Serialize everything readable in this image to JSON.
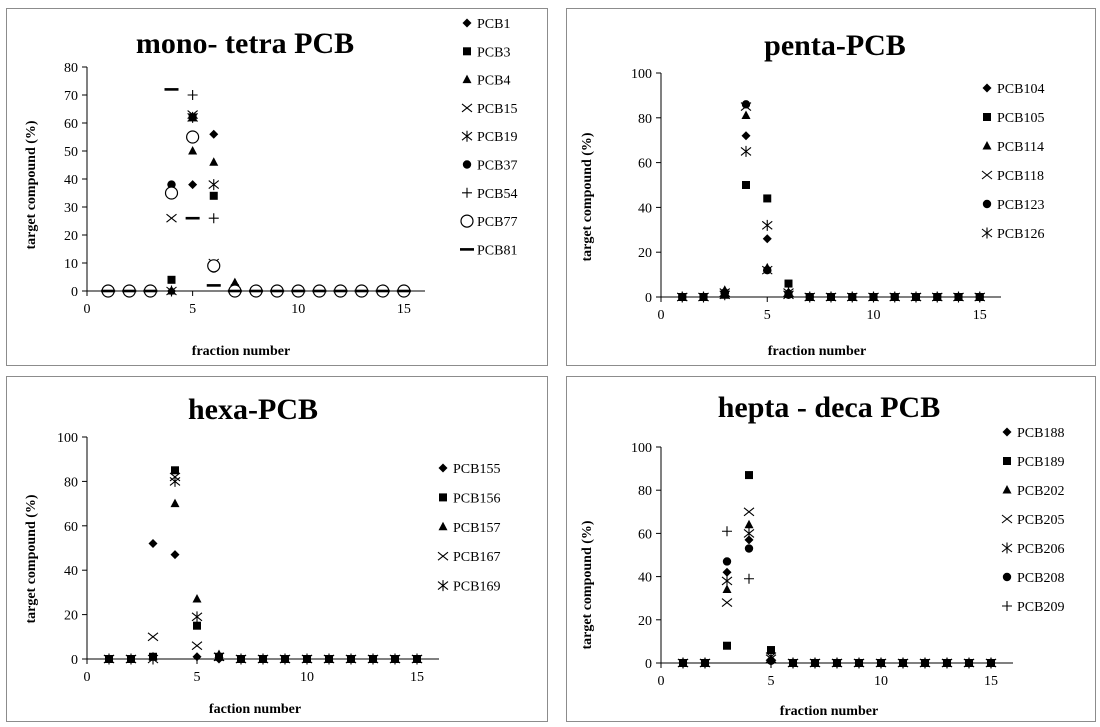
{
  "chart_data": [
    {
      "type": "scatter",
      "title": "mono- tetra PCB",
      "xlabel": "fraction number",
      "ylabel": "target compound (%)",
      "xlim": [
        0,
        16
      ],
      "ylim": [
        0,
        80
      ],
      "xticks": [
        0,
        5,
        10,
        15
      ],
      "yticks": [
        0,
        10,
        20,
        30,
        40,
        50,
        60,
        70,
        80
      ],
      "legend": "right",
      "series": [
        {
          "name": "PCB1",
          "marker": "diamond",
          "x": [
            1,
            2,
            3,
            4,
            5,
            6,
            7,
            8,
            9,
            10,
            11,
            12,
            13,
            14,
            15
          ],
          "y": [
            0,
            0,
            0,
            0,
            38,
            56,
            2,
            0,
            0,
            0,
            0,
            0,
            0,
            0,
            0
          ]
        },
        {
          "name": "PCB3",
          "marker": "square",
          "x": [
            1,
            2,
            3,
            4,
            5,
            6,
            7,
            8,
            9,
            10,
            11,
            12,
            13,
            14,
            15
          ],
          "y": [
            0,
            0,
            0,
            4,
            62,
            34,
            1,
            0,
            0,
            0,
            0,
            0,
            0,
            0,
            0
          ]
        },
        {
          "name": "PCB4",
          "marker": "triangle",
          "x": [
            1,
            2,
            3,
            4,
            5,
            6,
            7,
            8,
            9,
            10,
            11,
            12,
            13,
            14,
            15
          ],
          "y": [
            0,
            0,
            0,
            0,
            50,
            46,
            3,
            0,
            0,
            0,
            0,
            0,
            0,
            0,
            0
          ]
        },
        {
          "name": "PCB15",
          "marker": "x",
          "x": [
            1,
            2,
            3,
            4,
            5,
            6,
            7,
            8,
            9,
            10,
            11,
            12,
            13,
            14,
            15
          ],
          "y": [
            0,
            0,
            0,
            26,
            63,
            10,
            0,
            0,
            0,
            0,
            0,
            0,
            0,
            0,
            0
          ]
        },
        {
          "name": "PCB19",
          "marker": "star",
          "x": [
            1,
            2,
            3,
            4,
            5,
            6,
            7,
            8,
            9,
            10,
            11,
            12,
            13,
            14,
            15
          ],
          "y": [
            0,
            0,
            0,
            0,
            62,
            38,
            0,
            0,
            0,
            0,
            0,
            0,
            0,
            0,
            0
          ]
        },
        {
          "name": "PCB37",
          "marker": "circle",
          "x": [
            1,
            2,
            3,
            4,
            5,
            6,
            7,
            8,
            9,
            10,
            11,
            12,
            13,
            14,
            15
          ],
          "y": [
            0,
            0,
            0,
            38,
            55,
            8,
            0,
            0,
            0,
            0,
            0,
            0,
            0,
            0,
            0
          ]
        },
        {
          "name": "PCB54",
          "marker": "plus",
          "x": [
            1,
            2,
            3,
            4,
            5,
            6,
            7,
            8,
            9,
            10,
            11,
            12,
            13,
            14,
            15
          ],
          "y": [
            0,
            0,
            0,
            0,
            70,
            26,
            0,
            0,
            0,
            0,
            0,
            0,
            0,
            0,
            0
          ]
        },
        {
          "name": "PCB77",
          "marker": "ocircle",
          "x": [
            1,
            2,
            3,
            4,
            5,
            6,
            7,
            8,
            9,
            10,
            11,
            12,
            13,
            14,
            15
          ],
          "y": [
            0,
            0,
            0,
            35,
            55,
            9,
            0,
            0,
            0,
            0,
            0,
            0,
            0,
            0,
            0
          ]
        },
        {
          "name": "PCB81",
          "marker": "dash",
          "x": [
            1,
            2,
            3,
            4,
            5,
            6,
            7,
            8,
            9,
            10,
            11,
            12,
            13,
            14,
            15
          ],
          "y": [
            0,
            0,
            0,
            72,
            26,
            2,
            0,
            0,
            0,
            0,
            0,
            0,
            0,
            0,
            0
          ]
        }
      ]
    },
    {
      "type": "scatter",
      "title": "penta-PCB",
      "xlabel": "fraction number",
      "ylabel": "target compound (%)",
      "xlim": [
        0,
        16
      ],
      "ylim": [
        0,
        100
      ],
      "xticks": [
        0,
        5,
        10,
        15
      ],
      "yticks": [
        0,
        20,
        40,
        60,
        80,
        100
      ],
      "legend": "right",
      "series": [
        {
          "name": "PCB104",
          "marker": "diamond",
          "x": [
            1,
            2,
            3,
            4,
            5,
            6,
            7,
            8,
            9,
            10,
            11,
            12,
            13,
            14,
            15
          ],
          "y": [
            0,
            0,
            2,
            72,
            26,
            2,
            0,
            0,
            0,
            0,
            0,
            0,
            0,
            0,
            0
          ]
        },
        {
          "name": "PCB105",
          "marker": "square",
          "x": [
            1,
            2,
            3,
            4,
            5,
            6,
            7,
            8,
            9,
            10,
            11,
            12,
            13,
            14,
            15
          ],
          "y": [
            0,
            0,
            1,
            50,
            44,
            6,
            0,
            0,
            0,
            0,
            0,
            0,
            0,
            0,
            0
          ]
        },
        {
          "name": "PCB114",
          "marker": "triangle",
          "x": [
            1,
            2,
            3,
            4,
            5,
            6,
            7,
            8,
            9,
            10,
            11,
            12,
            13,
            14,
            15
          ],
          "y": [
            0,
            0,
            3,
            81,
            13,
            2,
            0,
            0,
            0,
            0,
            0,
            0,
            0,
            0,
            0
          ]
        },
        {
          "name": "PCB118",
          "marker": "x",
          "x": [
            1,
            2,
            3,
            4,
            5,
            6,
            7,
            8,
            9,
            10,
            11,
            12,
            13,
            14,
            15
          ],
          "y": [
            0,
            0,
            2,
            85,
            12,
            1,
            0,
            0,
            0,
            0,
            0,
            0,
            0,
            0,
            0
          ]
        },
        {
          "name": "PCB123",
          "marker": "circle",
          "x": [
            1,
            2,
            3,
            4,
            5,
            6,
            7,
            8,
            9,
            10,
            11,
            12,
            13,
            14,
            15
          ],
          "y": [
            0,
            0,
            2,
            86,
            12,
            1,
            0,
            0,
            0,
            0,
            0,
            0,
            0,
            0,
            0
          ]
        },
        {
          "name": "PCB126",
          "marker": "star",
          "x": [
            1,
            2,
            3,
            4,
            5,
            6,
            7,
            8,
            9,
            10,
            11,
            12,
            13,
            14,
            15
          ],
          "y": [
            0,
            0,
            1,
            65,
            32,
            2,
            0,
            0,
            0,
            0,
            0,
            0,
            0,
            0,
            0
          ]
        }
      ]
    },
    {
      "type": "scatter",
      "title": "hexa-PCB",
      "xlabel": "faction number",
      "ylabel": "target compound (%)",
      "xlim": [
        0,
        16
      ],
      "ylim": [
        0,
        100
      ],
      "xticks": [
        0,
        5,
        10,
        15
      ],
      "yticks": [
        0,
        20,
        40,
        60,
        80,
        100
      ],
      "legend": "right",
      "series": [
        {
          "name": "PCB155",
          "marker": "diamond",
          "x": [
            1,
            2,
            3,
            4,
            5,
            6,
            7,
            8,
            9,
            10,
            11,
            12,
            13,
            14,
            15
          ],
          "y": [
            0,
            0,
            52,
            47,
            1,
            0,
            0,
            0,
            0,
            0,
            0,
            0,
            0,
            0,
            0
          ]
        },
        {
          "name": "PCB156",
          "marker": "square",
          "x": [
            1,
            2,
            3,
            4,
            5,
            6,
            7,
            8,
            9,
            10,
            11,
            12,
            13,
            14,
            15
          ],
          "y": [
            0,
            0,
            1,
            85,
            15,
            1,
            0,
            0,
            0,
            0,
            0,
            0,
            0,
            0,
            0
          ]
        },
        {
          "name": "PCB157",
          "marker": "triangle",
          "x": [
            1,
            2,
            3,
            4,
            5,
            6,
            7,
            8,
            9,
            10,
            11,
            12,
            13,
            14,
            15
          ],
          "y": [
            0,
            0,
            1,
            70,
            27,
            2,
            0,
            0,
            0,
            0,
            0,
            0,
            0,
            0,
            0
          ]
        },
        {
          "name": "PCB167",
          "marker": "x",
          "x": [
            1,
            2,
            3,
            4,
            5,
            6,
            7,
            8,
            9,
            10,
            11,
            12,
            13,
            14,
            15
          ],
          "y": [
            0,
            0,
            10,
            82,
            6,
            1,
            0,
            0,
            0,
            0,
            0,
            0,
            0,
            0,
            0
          ]
        },
        {
          "name": "PCB169",
          "marker": "star",
          "x": [
            1,
            2,
            3,
            4,
            5,
            6,
            7,
            8,
            9,
            10,
            11,
            12,
            13,
            14,
            15
          ],
          "y": [
            0,
            0,
            0,
            80,
            19,
            1,
            0,
            0,
            0,
            0,
            0,
            0,
            0,
            0,
            0
          ]
        }
      ]
    },
    {
      "type": "scatter",
      "title": "hepta - deca PCB",
      "xlabel": "fraction number",
      "ylabel": "target compound (%)",
      "xlim": [
        0,
        16
      ],
      "ylim": [
        0,
        100
      ],
      "xticks": [
        0,
        5,
        10,
        15
      ],
      "yticks": [
        0,
        20,
        40,
        60,
        80,
        100
      ],
      "legend": "right",
      "series": [
        {
          "name": "PCB188",
          "marker": "diamond",
          "x": [
            1,
            2,
            3,
            4,
            5,
            6,
            7,
            8,
            9,
            10,
            11,
            12,
            13,
            14,
            15
          ],
          "y": [
            0,
            0,
            42,
            57,
            1,
            0,
            0,
            0,
            0,
            0,
            0,
            0,
            0,
            0,
            0
          ]
        },
        {
          "name": "PCB189",
          "marker": "square",
          "x": [
            1,
            2,
            3,
            4,
            5,
            6,
            7,
            8,
            9,
            10,
            11,
            12,
            13,
            14,
            15
          ],
          "y": [
            0,
            0,
            8,
            87,
            6,
            0,
            0,
            0,
            0,
            0,
            0,
            0,
            0,
            0,
            0
          ]
        },
        {
          "name": "PCB202",
          "marker": "triangle",
          "x": [
            1,
            2,
            3,
            4,
            5,
            6,
            7,
            8,
            9,
            10,
            11,
            12,
            13,
            14,
            15
          ],
          "y": [
            0,
            0,
            34,
            64,
            2,
            0,
            0,
            0,
            0,
            0,
            0,
            0,
            0,
            0,
            0
          ]
        },
        {
          "name": "PCB205",
          "marker": "x",
          "x": [
            1,
            2,
            3,
            4,
            5,
            6,
            7,
            8,
            9,
            10,
            11,
            12,
            13,
            14,
            15
          ],
          "y": [
            0,
            0,
            28,
            70,
            3,
            0,
            0,
            0,
            0,
            0,
            0,
            0,
            0,
            0,
            0
          ]
        },
        {
          "name": "PCB206",
          "marker": "star",
          "x": [
            1,
            2,
            3,
            4,
            5,
            6,
            7,
            8,
            9,
            10,
            11,
            12,
            13,
            14,
            15
          ],
          "y": [
            0,
            0,
            38,
            60,
            2,
            0,
            0,
            0,
            0,
            0,
            0,
            0,
            0,
            0,
            0
          ]
        },
        {
          "name": "PCB208",
          "marker": "circle",
          "x": [
            1,
            2,
            3,
            4,
            5,
            6,
            7,
            8,
            9,
            10,
            11,
            12,
            13,
            14,
            15
          ],
          "y": [
            0,
            0,
            47,
            53,
            1,
            0,
            0,
            0,
            0,
            0,
            0,
            0,
            0,
            0,
            0
          ]
        },
        {
          "name": "PCB209",
          "marker": "plus",
          "x": [
            1,
            2,
            3,
            4,
            5,
            6,
            7,
            8,
            9,
            10,
            11,
            12,
            13,
            14,
            15
          ],
          "y": [
            0,
            0,
            61,
            39,
            0,
            0,
            0,
            0,
            0,
            0,
            0,
            0,
            0,
            0,
            0
          ]
        }
      ]
    }
  ]
}
